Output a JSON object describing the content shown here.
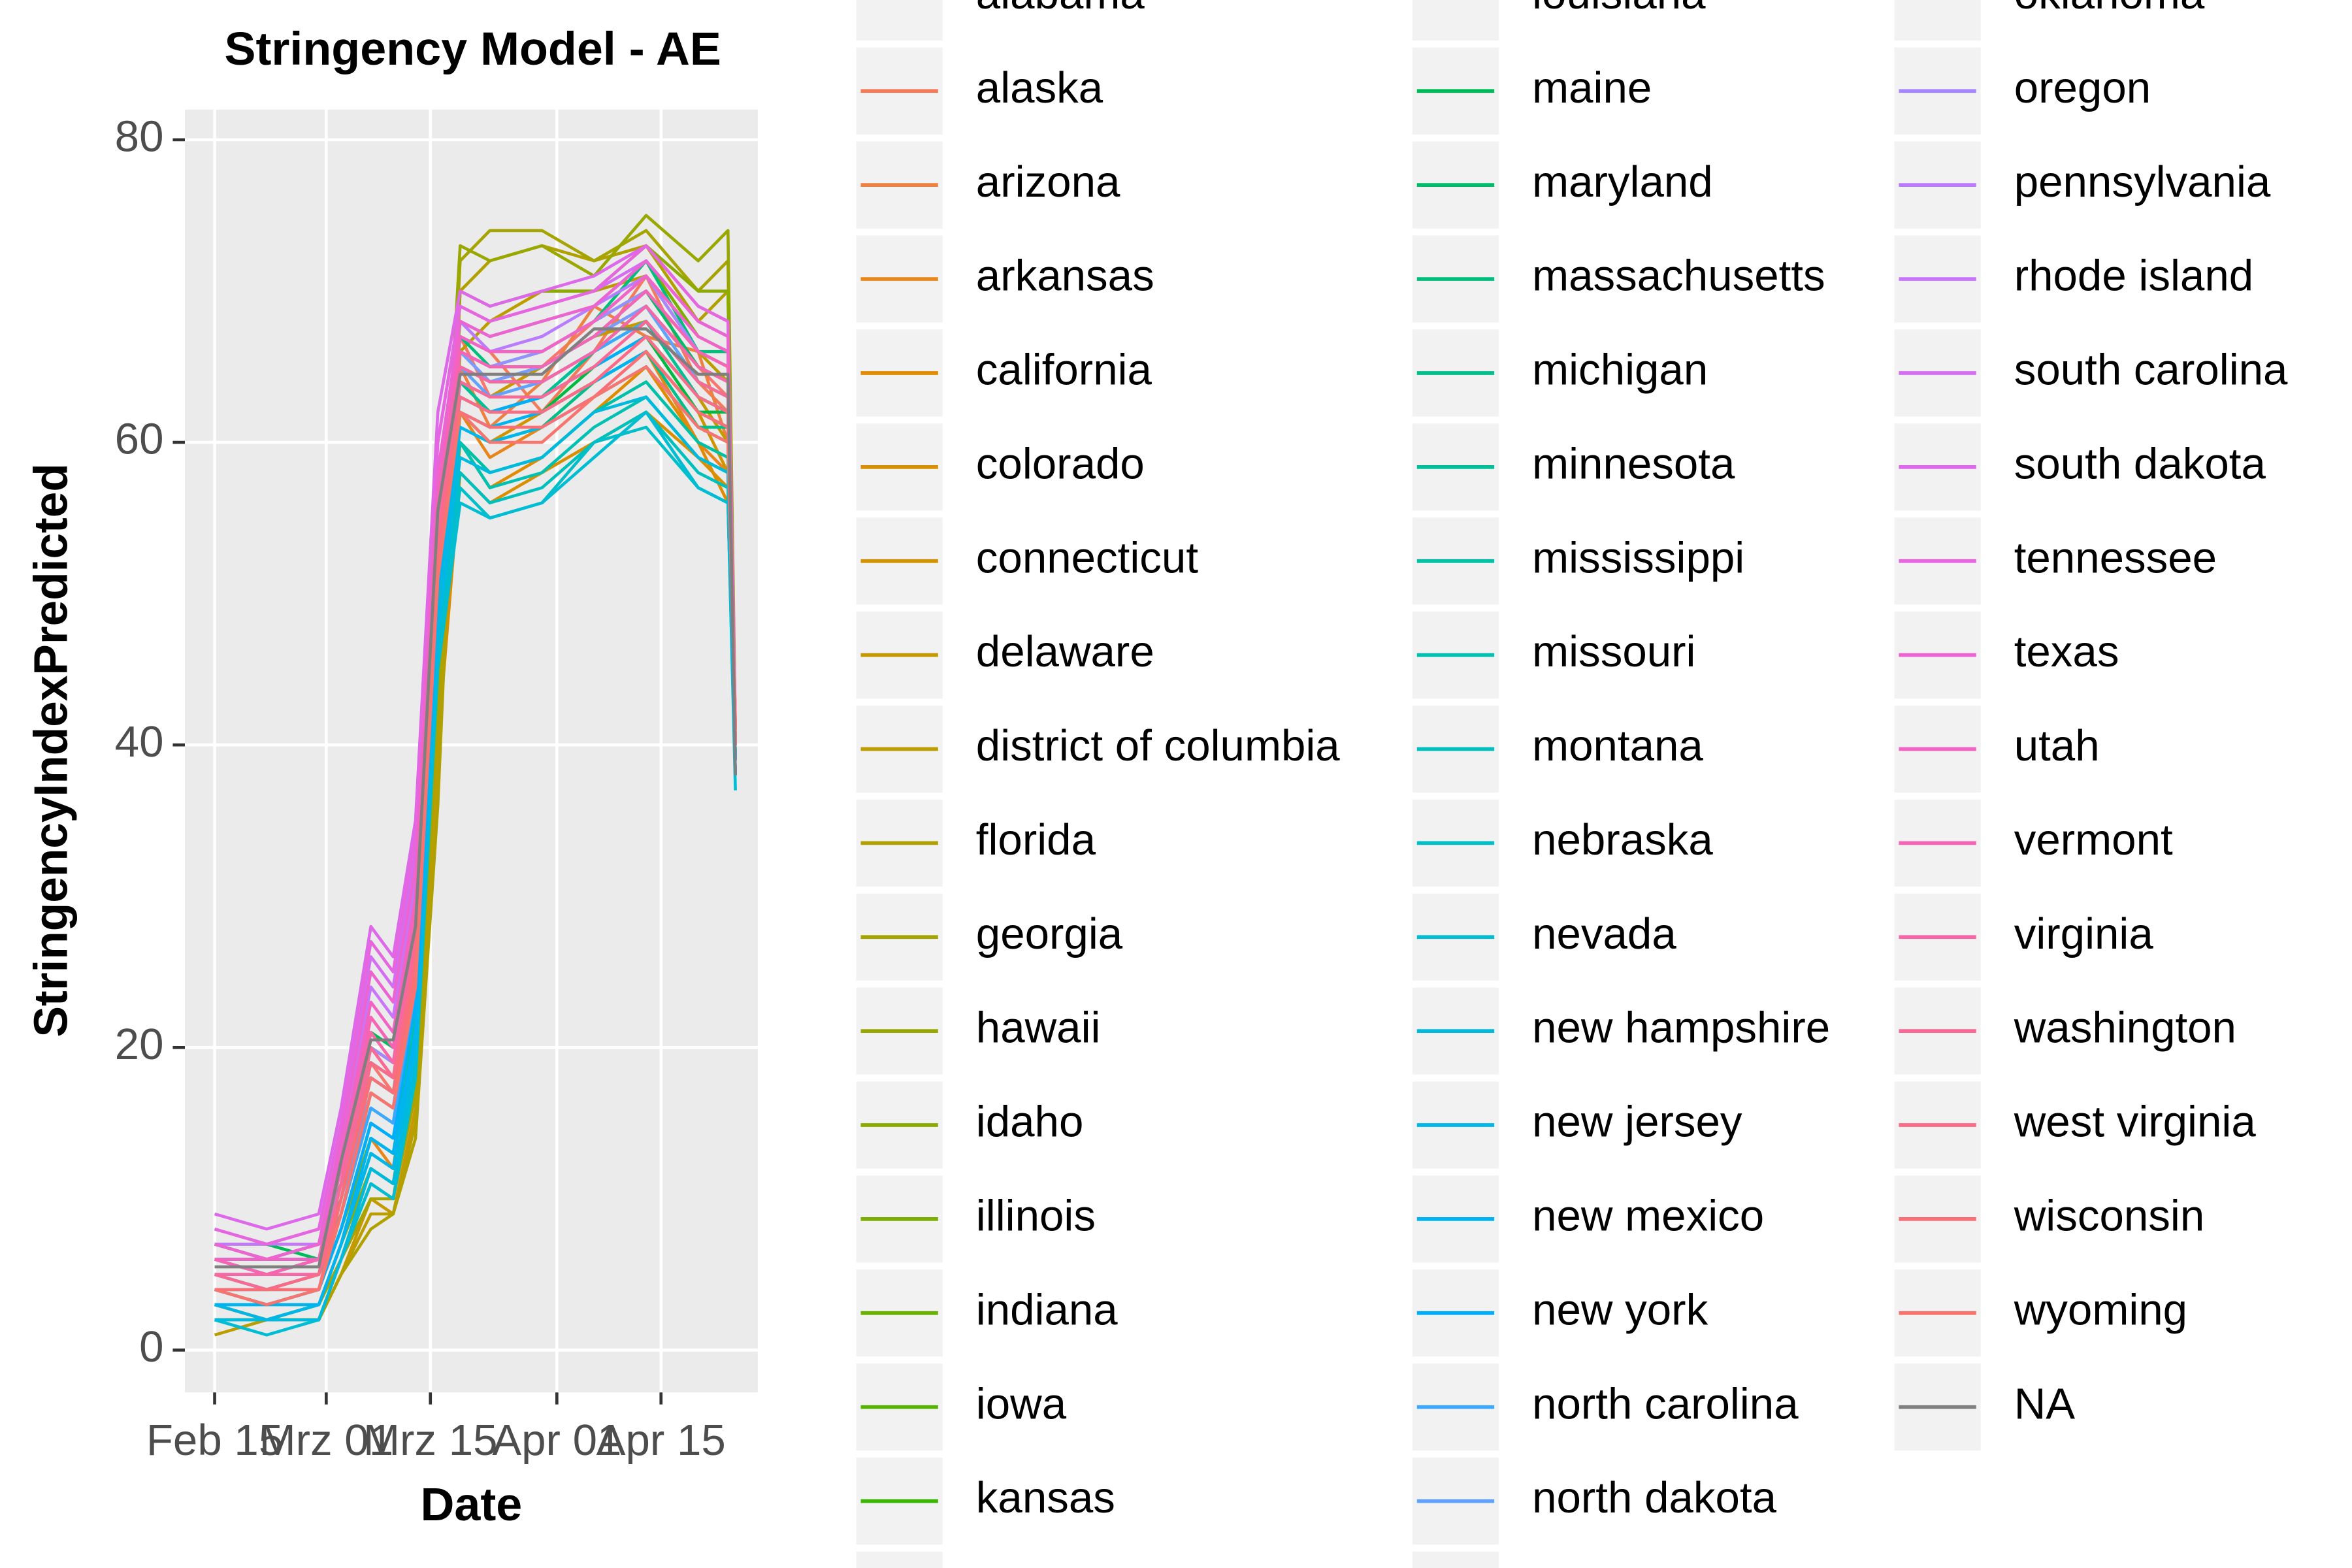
{
  "chart_data": {
    "type": "line",
    "title": "Stringency Model - AE",
    "x_label": "Date",
    "y_label": "StringencyIndexPredicted",
    "x": [
      "02-15",
      "02-22",
      "02-29",
      "03-03",
      "03-07",
      "03-10",
      "03-13",
      "03-16",
      "03-19",
      "03-23",
      "03-30",
      "04-06",
      "04-13",
      "04-20",
      "04-24",
      "04-25"
    ],
    "xlim": [
      "02-11",
      "04-28"
    ],
    "xticks": [
      {
        "value": "02-15",
        "label": "Feb 15"
      },
      {
        "value": "03-01",
        "label": "Mrz 01"
      },
      {
        "value": "03-15",
        "label": "Mrz 15"
      },
      {
        "value": "04-01",
        "label": "Apr 01"
      },
      {
        "value": "04-15",
        "label": "Apr 15"
      }
    ],
    "ylim": [
      -2.8,
      82
    ],
    "yticks": [
      0,
      20,
      40,
      60,
      80
    ],
    "grid": true,
    "legend_position": "right",
    "series": [
      {
        "name": "alabama",
        "color": "#F8766D",
        "values": [
          5,
          4,
          5,
          10,
          19,
          17,
          27,
          52,
          67,
          63,
          65,
          68,
          70,
          65,
          63,
          40
        ]
      },
      {
        "name": "alaska",
        "color": "#F37B59",
        "values": [
          6,
          5,
          6,
          11,
          20,
          18,
          26,
          54,
          68,
          66,
          62,
          66,
          71,
          64,
          62,
          39
        ]
      },
      {
        "name": "arizona",
        "color": "#ED8141",
        "values": [
          4,
          3,
          4,
          9,
          17,
          16,
          25,
          50,
          65,
          61,
          64,
          69,
          67,
          66,
          60,
          40
        ]
      },
      {
        "name": "arkansas",
        "color": "#E7861B",
        "values": [
          3,
          2,
          3,
          7,
          14,
          12,
          22,
          45,
          62,
          59,
          61,
          64,
          66,
          60,
          58,
          39
        ]
      },
      {
        "name": "california",
        "color": "#E08B00",
        "values": [
          2,
          2,
          2,
          6,
          12,
          11,
          20,
          42,
          60,
          57,
          59,
          62,
          65,
          60,
          56,
          38
        ]
      },
      {
        "name": "colorado",
        "color": "#D89000",
        "values": [
          2,
          2,
          2,
          6,
          11,
          10,
          19,
          40,
          58,
          56,
          58,
          60,
          62,
          59,
          57,
          38
        ]
      },
      {
        "name": "connecticut",
        "color": "#CF9400",
        "values": [
          3,
          2,
          2,
          6,
          10,
          10,
          18,
          44,
          62,
          60,
          62,
          64,
          66,
          62,
          58,
          39
        ]
      },
      {
        "name": "delaware",
        "color": "#C59900",
        "values": [
          2,
          2,
          2,
          5,
          10,
          9,
          16,
          40,
          65,
          63,
          65,
          67,
          68,
          63,
          60,
          39
        ]
      },
      {
        "name": "district of columbia",
        "color": "#BB9D00",
        "values": [
          1,
          2,
          2,
          5,
          9,
          9,
          15,
          38,
          66,
          68,
          70,
          70,
          71,
          66,
          64,
          40
        ]
      },
      {
        "name": "florida",
        "color": "#B0A100",
        "values": [
          2,
          2,
          2,
          5,
          8,
          9,
          14,
          36,
          70,
          72,
          73,
          72,
          73,
          68,
          70,
          41
        ]
      },
      {
        "name": "georgia",
        "color": "#A5A400",
        "values": [
          3,
          2,
          3,
          6,
          10,
          10,
          17,
          42,
          72,
          74,
          74,
          72,
          74,
          70,
          72,
          40
        ]
      },
      {
        "name": "hawaii",
        "color": "#99A800",
        "values": [
          4,
          3,
          3,
          7,
          12,
          11,
          20,
          48,
          73,
          72,
          73,
          71,
          75,
          72,
          74,
          41
        ]
      },
      {
        "name": "idaho",
        "color": "#8BAB00",
        "values": [
          5,
          4,
          4,
          8,
          14,
          13,
          22,
          50,
          70,
          69,
          70,
          70,
          73,
          70,
          70,
          40
        ]
      },
      {
        "name": "illinois",
        "color": "#7CAE00",
        "values": [
          6,
          5,
          5,
          9,
          16,
          15,
          24,
          52,
          68,
          67,
          68,
          69,
          72,
          67,
          66,
          40
        ]
      },
      {
        "name": "indiana",
        "color": "#6BB100",
        "values": [
          6,
          6,
          6,
          10,
          18,
          17,
          26,
          55,
          67,
          66,
          66,
          68,
          70,
          66,
          65,
          39
        ]
      },
      {
        "name": "iowa",
        "color": "#55B400",
        "values": [
          7,
          6,
          7,
          11,
          20,
          19,
          28,
          56,
          66,
          65,
          65,
          67,
          69,
          65,
          64,
          40
        ]
      },
      {
        "name": "kansas",
        "color": "#39B600",
        "values": [
          7,
          7,
          7,
          12,
          21,
          20,
          29,
          57,
          65,
          64,
          64,
          66,
          68,
          64,
          63,
          39
        ]
      },
      {
        "name": null,
        "color": "#00B81F",
        "values": [
          7,
          6,
          6,
          11,
          20,
          19,
          27,
          55,
          64,
          62,
          63,
          65,
          67,
          63,
          62,
          39
        ]
      },
      {
        "name": "louisiana",
        "color": "#00BA42",
        "values": [
          6,
          6,
          6,
          11,
          19,
          18,
          26,
          54,
          63,
          62,
          62,
          65,
          67,
          62,
          62,
          40
        ]
      },
      {
        "name": "maine",
        "color": "#00BB59",
        "values": [
          7,
          7,
          6,
          12,
          21,
          20,
          28,
          58,
          64,
          62,
          63,
          66,
          69,
          64,
          63,
          39
        ]
      },
      {
        "name": "maryland",
        "color": "#00BC6B",
        "values": [
          6,
          6,
          6,
          11,
          20,
          19,
          28,
          56,
          66,
          64,
          65,
          67,
          70,
          65,
          64,
          40
        ]
      },
      {
        "name": "massachusetts",
        "color": "#00BE7B",
        "values": [
          5,
          5,
          6,
          10,
          19,
          18,
          27,
          55,
          67,
          65,
          66,
          68,
          72,
          66,
          66,
          40
        ]
      },
      {
        "name": "michigan",
        "color": "#00BF8A",
        "values": [
          5,
          4,
          5,
          10,
          18,
          17,
          26,
          53,
          62,
          60,
          61,
          64,
          66,
          61,
          61,
          39
        ]
      },
      {
        "name": "minnesota",
        "color": "#00C098",
        "values": [
          4,
          4,
          5,
          9,
          17,
          16,
          25,
          52,
          64,
          62,
          63,
          66,
          68,
          63,
          62,
          39
        ]
      },
      {
        "name": "mississippi",
        "color": "#00C0A5",
        "values": [
          3,
          3,
          4,
          8,
          15,
          14,
          22,
          50,
          60,
          58,
          59,
          62,
          64,
          60,
          59,
          38
        ]
      },
      {
        "name": "missouri",
        "color": "#00C1B2",
        "values": [
          2,
          2,
          3,
          7,
          14,
          13,
          21,
          48,
          60,
          57,
          58,
          61,
          63,
          59,
          58,
          38
        ]
      },
      {
        "name": "montana",
        "color": "#00C0BE",
        "values": [
          2,
          2,
          3,
          7,
          13,
          12,
          20,
          47,
          58,
          56,
          57,
          60,
          62,
          58,
          57,
          38
        ]
      },
      {
        "name": "nebraska",
        "color": "#00BFC9",
        "values": [
          2,
          2,
          2,
          6,
          12,
          11,
          19,
          46,
          57,
          55,
          56,
          60,
          61,
          57,
          56,
          38
        ]
      },
      {
        "name": "nevada",
        "color": "#00BDD4",
        "values": [
          2,
          1,
          2,
          6,
          11,
          10,
          18,
          45,
          56,
          55,
          56,
          59,
          62,
          57,
          56,
          37
        ]
      },
      {
        "name": "new hampshire",
        "color": "#00BADE",
        "values": [
          2,
          2,
          2,
          6,
          12,
          11,
          19,
          47,
          59,
          58,
          59,
          62,
          63,
          59,
          58,
          38
        ]
      },
      {
        "name": "new jersey",
        "color": "#00B7E8",
        "values": [
          3,
          2,
          3,
          7,
          13,
          12,
          20,
          48,
          61,
          60,
          61,
          63,
          65,
          61,
          60,
          38
        ]
      },
      {
        "name": "new mexico",
        "color": "#00B3F1",
        "values": [
          3,
          3,
          3,
          7,
          14,
          13,
          21,
          50,
          62,
          61,
          62,
          64,
          66,
          62,
          61,
          39
        ]
      },
      {
        "name": "new york",
        "color": "#00AEFA",
        "values": [
          4,
          3,
          4,
          8,
          15,
          14,
          23,
          51,
          63,
          62,
          63,
          65,
          67,
          63,
          62,
          39
        ]
      },
      {
        "name": "north carolina",
        "color": "#3DA8FF",
        "values": [
          4,
          4,
          4,
          9,
          16,
          15,
          24,
          52,
          64,
          63,
          64,
          66,
          68,
          64,
          63,
          39
        ]
      },
      {
        "name": "north dakota",
        "color": "#62A2FF",
        "values": [
          5,
          4,
          5,
          10,
          17,
          16,
          25,
          53,
          65,
          63,
          64,
          66,
          69,
          64,
          63,
          40
        ]
      },
      {
        "name": null,
        "color": "#7E9AFF",
        "values": [
          5,
          5,
          5,
          10,
          18,
          17,
          26,
          54,
          66,
          64,
          65,
          67,
          69,
          65,
          64,
          40
        ]
      },
      {
        "name": "oklahoma",
        "color": "#9590FF",
        "values": [
          6,
          5,
          6,
          11,
          19,
          18,
          27,
          55,
          66,
          65,
          66,
          68,
          70,
          66,
          65,
          40
        ]
      },
      {
        "name": "oregon",
        "color": "#A886FF",
        "values": [
          6,
          6,
          6,
          12,
          20,
          19,
          28,
          56,
          67,
          66,
          66,
          68,
          71,
          66,
          65,
          40
        ]
      },
      {
        "name": "pennsylvania",
        "color": "#B97CFF",
        "values": [
          7,
          6,
          7,
          13,
          22,
          20,
          29,
          57,
          68,
          66,
          67,
          69,
          71,
          67,
          66,
          41
        ]
      },
      {
        "name": "rhode island",
        "color": "#C775F9",
        "values": [
          7,
          7,
          7,
          14,
          24,
          22,
          31,
          58,
          68,
          67,
          68,
          69,
          72,
          68,
          67,
          41
        ]
      },
      {
        "name": "south carolina",
        "color": "#D36EF2",
        "values": [
          8,
          7,
          8,
          15,
          26,
          24,
          33,
          60,
          69,
          68,
          69,
          70,
          72,
          68,
          67,
          41
        ]
      },
      {
        "name": "south dakota",
        "color": "#DD68E9",
        "values": [
          9,
          8,
          9,
          16,
          28,
          26,
          35,
          62,
          70,
          69,
          70,
          71,
          73,
          69,
          68,
          41
        ]
      },
      {
        "name": "tennessee",
        "color": "#E566DE",
        "values": [
          8,
          7,
          8,
          15,
          27,
          25,
          34,
          60,
          69,
          68,
          69,
          70,
          73,
          69,
          68,
          41
        ]
      },
      {
        "name": "texas",
        "color": "#EC64D1",
        "values": [
          7,
          6,
          7,
          14,
          25,
          23,
          32,
          58,
          68,
          67,
          68,
          69,
          72,
          68,
          67,
          40
        ]
      },
      {
        "name": "utah",
        "color": "#F163C4",
        "values": [
          6,
          6,
          6,
          13,
          23,
          21,
          30,
          57,
          67,
          66,
          66,
          68,
          71,
          67,
          66,
          40
        ]
      },
      {
        "name": "vermont",
        "color": "#F564B5",
        "values": [
          6,
          5,
          6,
          12,
          22,
          20,
          29,
          56,
          66,
          65,
          65,
          67,
          70,
          66,
          65,
          40
        ]
      },
      {
        "name": "virginia",
        "color": "#F766A6",
        "values": [
          5,
          5,
          5,
          11,
          21,
          19,
          28,
          55,
          65,
          64,
          64,
          66,
          69,
          65,
          64,
          40
        ]
      },
      {
        "name": "washington",
        "color": "#F96996",
        "values": [
          5,
          4,
          5,
          11,
          20,
          18,
          27,
          54,
          64,
          63,
          63,
          65,
          68,
          64,
          63,
          40
        ]
      },
      {
        "name": "west virginia",
        "color": "#F96B87",
        "values": [
          4,
          4,
          5,
          10,
          19,
          18,
          26,
          53,
          63,
          62,
          62,
          64,
          67,
          63,
          62,
          41
        ]
      },
      {
        "name": "wisconsin",
        "color": "#F96F78",
        "values": [
          4,
          4,
          4,
          10,
          18,
          17,
          25,
          52,
          62,
          61,
          61,
          63,
          66,
          62,
          61,
          41
        ]
      },
      {
        "name": "wyoming",
        "color": "#F8746F",
        "values": [
          4,
          3,
          4,
          9,
          17,
          16,
          24,
          51,
          62,
          60,
          60,
          63,
          65,
          61,
          60,
          40
        ]
      },
      {
        "name": "NA",
        "color": "#7F7F7F",
        "values": [
          5.5,
          5.5,
          5.5,
          12.5,
          20.5,
          20.5,
          28,
          55.5,
          64.5,
          64.5,
          64.5,
          67.5,
          67.5,
          64.5,
          64.5,
          38
        ]
      }
    ]
  }
}
